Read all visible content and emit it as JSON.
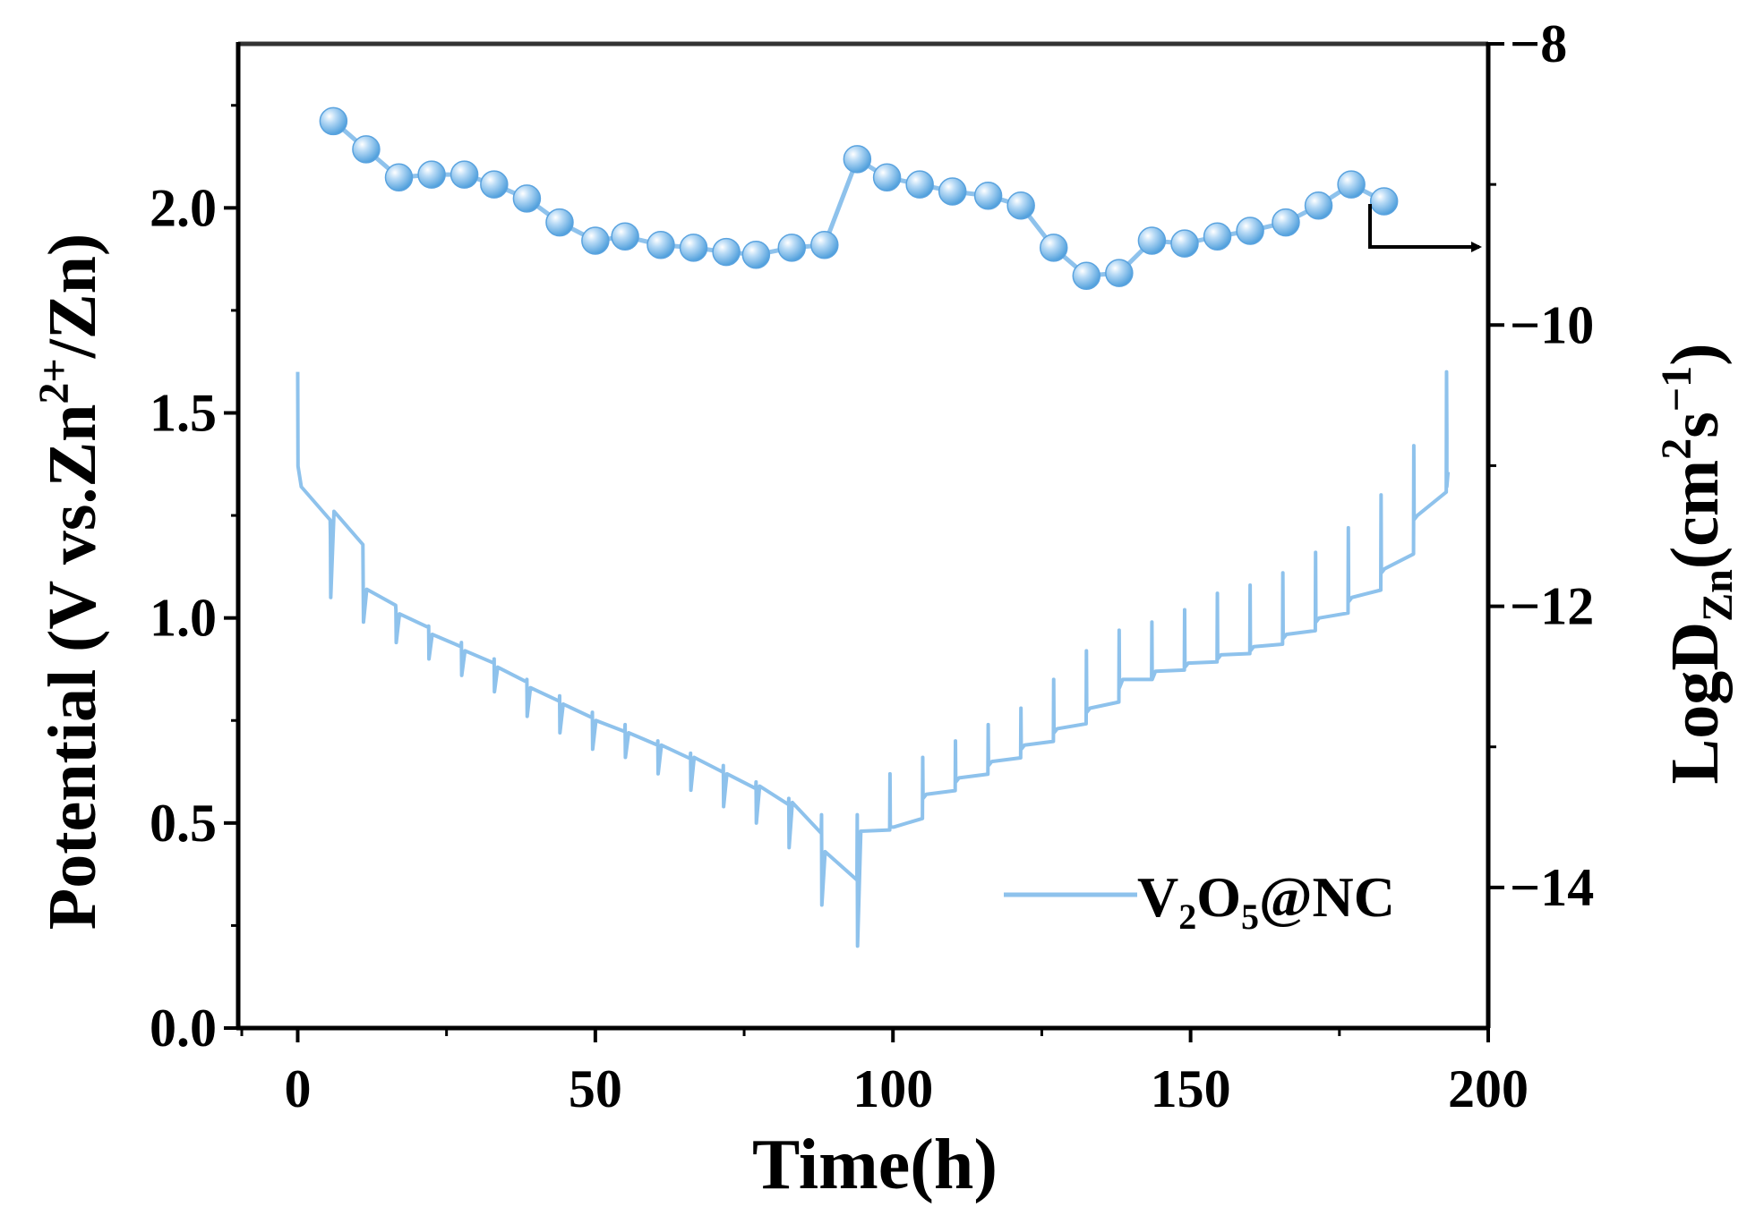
{
  "chart_data": {
    "type": "line",
    "xlabel": "Time(h)",
    "ylabel_left": {
      "text": "Potential (V vs.Zn",
      "sup": "2+",
      "tail": "/Zn)"
    },
    "ylabel_right": {
      "prefix": "LogD",
      "sub": "Zn",
      "mid": "(cm",
      "sup1": "2",
      "s": "s",
      "sup2": "−1",
      "close": ")"
    },
    "xlim": [
      -10,
      200
    ],
    "ylim_left": [
      0,
      2.4
    ],
    "ylim_right": [
      -15,
      -8
    ],
    "x_ticks": [
      "0",
      "50",
      "100",
      "150",
      "200"
    ],
    "y_left_ticks": [
      "0.0",
      "0.5",
      "1.0",
      "1.5",
      "2.0"
    ],
    "y_right_ticks": [
      "−8",
      "−10",
      "−12",
      "−14"
    ],
    "legend": {
      "position": "bottom-right",
      "label_main": "V",
      "sub1": "2",
      "mid": "O",
      "sub2": "5",
      "tail": "@NC"
    },
    "colors": {
      "series": "#8ec2ec",
      "marker": "#63aee6",
      "axis": "#000000"
    },
    "series": [
      {
        "axis": "right",
        "marker": "sphere",
        "x": [
          6,
          11.5,
          17,
          22.5,
          28,
          33,
          38.5,
          44,
          50,
          55,
          61,
          66.5,
          72,
          77,
          83,
          88.5,
          94,
          99,
          104.5,
          110,
          116,
          121.5,
          127,
          132.5,
          138,
          143.5,
          149,
          154.5,
          160,
          166,
          171.5,
          177,
          182.5
        ],
        "y": [
          -8.55,
          -8.75,
          -8.95,
          -8.93,
          -8.93,
          -9.0,
          -9.1,
          -9.27,
          -9.4,
          -9.37,
          -9.43,
          -9.45,
          -9.48,
          -9.5,
          -9.45,
          -9.43,
          -8.82,
          -8.95,
          -9.0,
          -9.05,
          -9.08,
          -9.15,
          -9.45,
          -9.65,
          -9.63,
          -9.4,
          -9.42,
          -9.37,
          -9.33,
          -9.27,
          -9.15,
          -9.0,
          -9.12
        ]
      },
      {
        "name": "V2O5@NC",
        "axis": "left",
        "marker": "line",
        "cycle_x": [
          0,
          5.5,
          11,
          16.5,
          22,
          27.5,
          33,
          38.5,
          44,
          49.5,
          55,
          60.5,
          66,
          71.5,
          77,
          82.5,
          88,
          94,
          99.5,
          105,
          110.5,
          116,
          121.5,
          127,
          132.5,
          138,
          143.5,
          149,
          154.5,
          160,
          165.5,
          171,
          176.5,
          182,
          187.5,
          193
        ],
        "cycle_peak": [
          1.6,
          1.2,
          1.08,
          1.02,
          0.98,
          0.94,
          0.9,
          0.85,
          0.81,
          0.77,
          0.74,
          0.7,
          0.67,
          0.64,
          0.6,
          0.56,
          0.52,
          0.52,
          0.62,
          0.66,
          0.7,
          0.74,
          0.78,
          0.85,
          0.92,
          0.97,
          0.99,
          1.02,
          1.06,
          1.08,
          1.11,
          1.16,
          1.22,
          1.3,
          1.42,
          1.6
        ],
        "cycle_rest": [
          1.32,
          1.26,
          1.07,
          1.01,
          0.96,
          0.92,
          0.88,
          0.83,
          0.79,
          0.75,
          0.72,
          0.69,
          0.66,
          0.62,
          0.59,
          0.55,
          0.43,
          0.48,
          0.49,
          0.57,
          0.61,
          0.65,
          0.69,
          0.73,
          0.78,
          0.85,
          0.87,
          0.89,
          0.91,
          0.93,
          0.96,
          1.0,
          1.05,
          1.12,
          1.25,
          1.32
        ],
        "cycle_min": [
          1.37,
          1.05,
          0.99,
          0.94,
          0.9,
          0.86,
          0.82,
          0.76,
          0.72,
          0.68,
          0.66,
          0.62,
          0.58,
          0.54,
          0.5,
          0.44,
          0.3,
          0.2,
          0.49,
          0.56,
          0.6,
          0.64,
          0.68,
          0.72,
          0.77,
          0.83,
          0.85,
          0.88,
          0.9,
          0.92,
          0.95,
          0.99,
          1.04,
          1.11,
          1.24,
          1.44
        ]
      }
    ],
    "extras": {
      "right_axis_arrow": true,
      "grid": false
    }
  }
}
